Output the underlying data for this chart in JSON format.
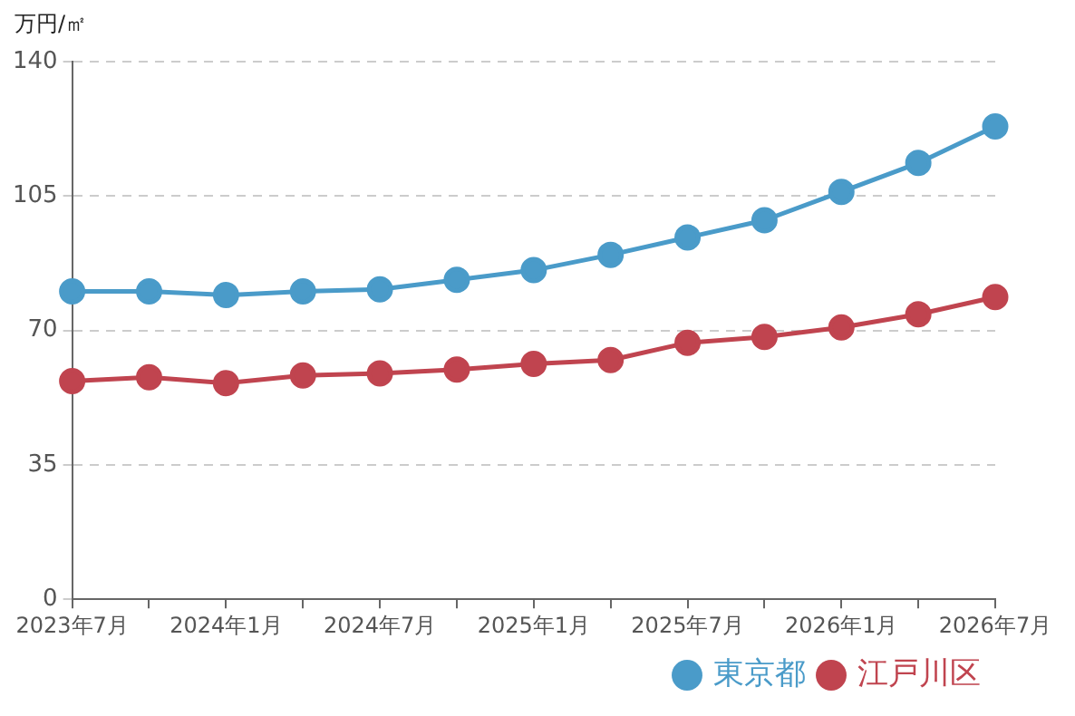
{
  "chart_data": {
    "type": "line",
    "ylabel": "万円/㎡",
    "categories": [
      "2023年7月",
      null,
      "2024年1月",
      null,
      "2024年7月",
      null,
      "2025年1月",
      null,
      "2025年7月",
      null,
      "2026年1月",
      null,
      "2026年7月"
    ],
    "series": [
      {
        "name": "東京都",
        "color": "#4a9bc9",
        "values": [
          80.2,
          80.2,
          79.2,
          80.2,
          80.7,
          83.2,
          85.7,
          89.7,
          94.2,
          98.7,
          106.1,
          113.6,
          123.1
        ]
      },
      {
        "name": "江戸川区",
        "color": "#c0444f",
        "values": [
          56.8,
          57.8,
          56.3,
          58.3,
          58.8,
          59.8,
          61.3,
          62.3,
          66.8,
          68.3,
          70.8,
          74.2,
          78.7
        ]
      }
    ],
    "ylim": [
      0,
      140
    ],
    "yticks": [
      0,
      35,
      70,
      105,
      140
    ],
    "grid": "y",
    "legend": "bottom right",
    "marker": "circle",
    "line_style": "solid"
  }
}
